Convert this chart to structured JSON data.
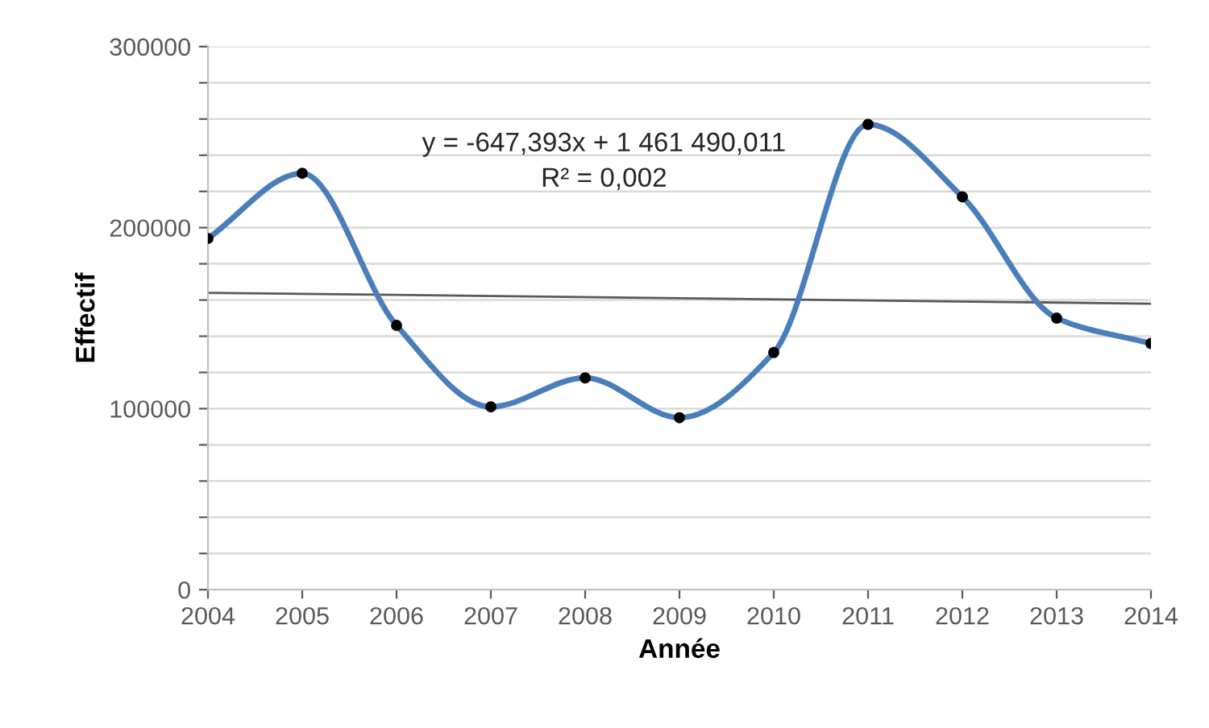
{
  "chart_data": {
    "type": "line",
    "xlabel": "Année",
    "ylabel": "Effectif",
    "x": [
      2004,
      2005,
      2006,
      2007,
      2008,
      2009,
      2010,
      2011,
      2012,
      2013,
      2014
    ],
    "series": [
      {
        "color": "#4a7ebb",
        "marker": "circle",
        "values": [
          194000,
          230000,
          146000,
          101000,
          117000,
          95000,
          131000,
          257000,
          217000,
          150000,
          136000
        ]
      },
      {
        "color": "#595959",
        "marker": "none",
        "x": [
          2004,
          2014
        ],
        "values": [
          164000,
          158000
        ]
      }
    ],
    "xlim": [
      2004,
      2014
    ],
    "xticks": [
      2004,
      2005,
      2006,
      2007,
      2008,
      2009,
      2010,
      2011,
      2012,
      2013,
      2014
    ],
    "ylim": [
      0,
      300000
    ],
    "yticks": [
      0,
      {
        "value": 20000,
        "label": null
      },
      {
        "value": 40000,
        "label": null
      },
      {
        "value": 60000,
        "label": null
      },
      {
        "value": 80000,
        "label": null
      },
      100000,
      {
        "value": 120000,
        "label": null
      },
      {
        "value": 140000,
        "label": null
      },
      {
        "value": 160000,
        "label": null
      },
      {
        "value": 180000,
        "label": null
      },
      200000,
      {
        "value": 220000,
        "label": null
      },
      {
        "value": 240000,
        "label": null
      },
      {
        "value": 260000,
        "label": null
      },
      {
        "value": 280000,
        "label": null
      },
      300000
    ],
    "grid": "y",
    "legend": false,
    "annotations": [
      "y = -647,393x + 1 461 490,011",
      "R² = 0,002"
    ]
  }
}
